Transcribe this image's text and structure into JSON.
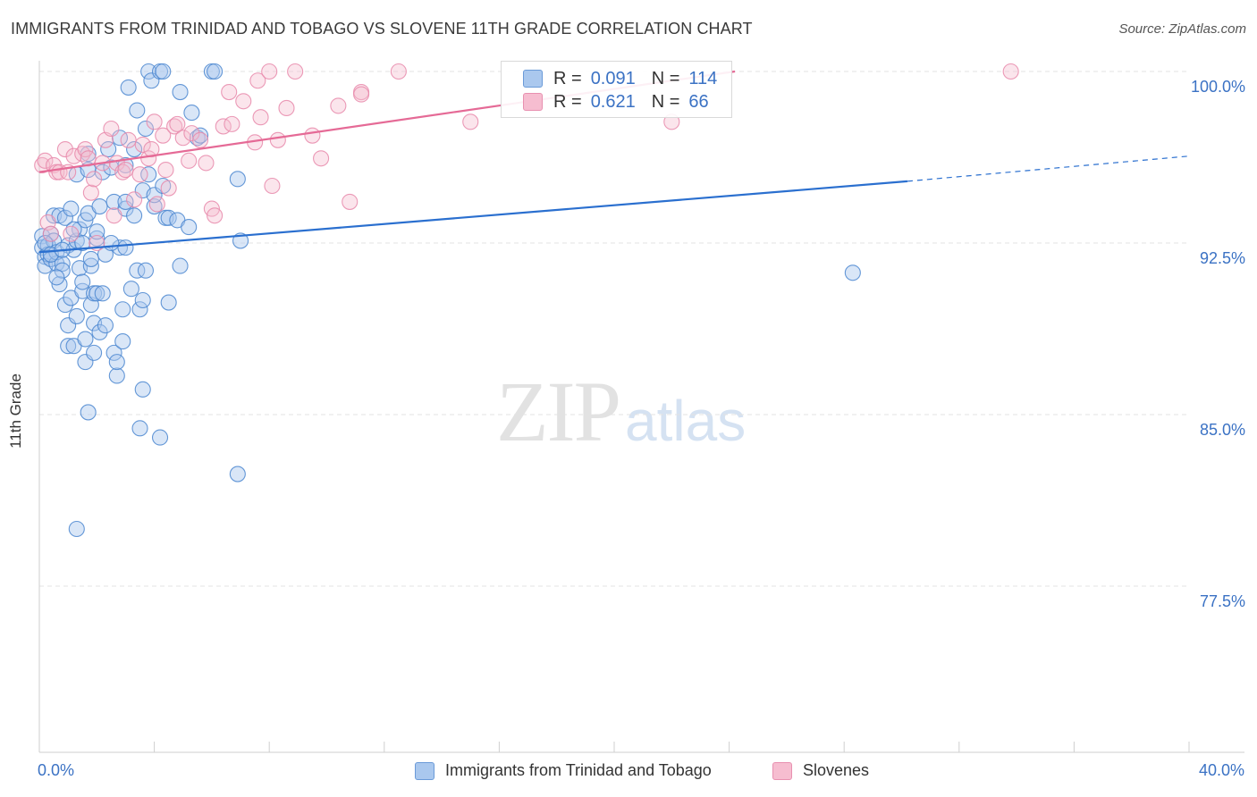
{
  "header": {
    "title": "IMMIGRANTS FROM TRINIDAD AND TOBAGO VS SLOVENE 11TH GRADE CORRELATION CHART",
    "source": "Source: ZipAtlas.com"
  },
  "watermark": {
    "zip": "ZIP",
    "atlas": "atlas"
  },
  "colors": {
    "blue_fill": "#aac8ee",
    "blue_stroke": "#4a86d0",
    "blue_line": "#2a6fcf",
    "pink_fill": "#f6bdd0",
    "pink_stroke": "#e888aa",
    "pink_line": "#e56a96",
    "axis_text": "#3b72c4",
    "grid": "#e3e3e3"
  },
  "legend_top": {
    "rows": [
      {
        "r_label": "R =",
        "r_value": "0.091",
        "n_label": "N =",
        "n_value": "114"
      },
      {
        "r_label": "R =",
        "r_value": "0.621",
        "n_label": "N =",
        "n_value": "66"
      }
    ]
  },
  "chart_data": {
    "type": "scatter",
    "title": "IMMIGRANTS FROM TRINIDAD AND TOBAGO VS SLOVENE 11TH GRADE CORRELATION CHART",
    "xlabel": "",
    "ylabel": "11th Grade",
    "xlim": [
      0,
      40
    ],
    "ylim": [
      70,
      101.5
    ],
    "x_tick_labels": [
      "0.0%",
      "40.0%"
    ],
    "y_ticks": [
      {
        "value": 100.0,
        "label": "100.0%"
      },
      {
        "value": 92.5,
        "label": "92.5%"
      },
      {
        "value": 85.0,
        "label": "85.0%"
      },
      {
        "value": 77.5,
        "label": "77.5%"
      }
    ],
    "legend_position": "bottom-center",
    "series": [
      {
        "name": "Immigrants from Trinidad and Tobago",
        "color": "#aac8ee",
        "r": 0.091,
        "n": 114,
        "trend": {
          "x0": 0,
          "y0": 92.1,
          "x1": 30.2,
          "y1": 95.2,
          "dash_to_x": 40,
          "dash_to_y": 96.3
        },
        "points": [
          [
            0.1,
            92.8
          ],
          [
            0.1,
            92.3
          ],
          [
            0.2,
            91.9
          ],
          [
            0.2,
            91.5
          ],
          [
            0.3,
            92.4
          ],
          [
            0.3,
            92.0
          ],
          [
            0.4,
            91.8
          ],
          [
            0.4,
            92.9
          ],
          [
            0.5,
            93.7
          ],
          [
            0.5,
            92.6
          ],
          [
            0.6,
            91.6
          ],
          [
            0.6,
            92.1
          ],
          [
            0.7,
            93.7
          ],
          [
            0.7,
            90.7
          ],
          [
            0.8,
            91.6
          ],
          [
            0.8,
            91.3
          ],
          [
            0.9,
            93.6
          ],
          [
            0.9,
            89.8
          ],
          [
            1.0,
            92.4
          ],
          [
            1.0,
            88.9
          ],
          [
            1.0,
            88.0
          ],
          [
            1.1,
            94.0
          ],
          [
            1.1,
            90.1
          ],
          [
            1.2,
            92.2
          ],
          [
            1.2,
            88.0
          ],
          [
            1.3,
            95.5
          ],
          [
            1.3,
            92.6
          ],
          [
            1.3,
            89.3
          ],
          [
            1.4,
            93.1
          ],
          [
            1.4,
            91.4
          ],
          [
            1.5,
            90.4
          ],
          [
            1.5,
            90.8
          ],
          [
            1.6,
            93.5
          ],
          [
            1.6,
            88.3
          ],
          [
            1.6,
            87.3
          ],
          [
            1.7,
            93.8
          ],
          [
            1.7,
            96.4
          ],
          [
            1.7,
            95.7
          ],
          [
            1.7,
            85.1
          ],
          [
            1.8,
            91.5
          ],
          [
            1.8,
            91.8
          ],
          [
            1.8,
            89.8
          ],
          [
            1.9,
            90.3
          ],
          [
            1.9,
            87.7
          ],
          [
            1.9,
            89.0
          ],
          [
            2.0,
            92.7
          ],
          [
            2.0,
            90.3
          ],
          [
            2.1,
            94.1
          ],
          [
            2.1,
            88.6
          ],
          [
            2.2,
            95.6
          ],
          [
            2.2,
            90.3
          ],
          [
            2.3,
            92.0
          ],
          [
            2.3,
            88.9
          ],
          [
            2.4,
            96.6
          ],
          [
            2.5,
            95.8
          ],
          [
            2.6,
            94.3
          ],
          [
            2.6,
            87.7
          ],
          [
            2.7,
            86.7
          ],
          [
            2.7,
            87.3
          ],
          [
            2.8,
            97.1
          ],
          [
            2.8,
            92.3
          ],
          [
            2.9,
            88.2
          ],
          [
            2.9,
            89.6
          ],
          [
            3.0,
            95.9
          ],
          [
            3.0,
            94.0
          ],
          [
            3.0,
            92.3
          ],
          [
            3.1,
            99.3
          ],
          [
            3.2,
            90.5
          ],
          [
            3.3,
            96.6
          ],
          [
            3.3,
            93.7
          ],
          [
            3.4,
            91.3
          ],
          [
            3.4,
            98.3
          ],
          [
            3.5,
            89.6
          ],
          [
            3.5,
            84.4
          ],
          [
            3.6,
            94.8
          ],
          [
            3.6,
            86.1
          ],
          [
            3.6,
            90.0
          ],
          [
            3.7,
            97.5
          ],
          [
            3.7,
            91.3
          ],
          [
            3.8,
            100.0
          ],
          [
            3.9,
            99.6
          ],
          [
            4.0,
            94.1
          ],
          [
            4.0,
            94.6
          ],
          [
            4.2,
            100.0
          ],
          [
            4.2,
            84.0
          ],
          [
            4.3,
            95.0
          ],
          [
            4.3,
            100.0
          ],
          [
            4.4,
            93.6
          ],
          [
            4.5,
            89.9
          ],
          [
            4.5,
            93.6
          ],
          [
            4.8,
            93.5
          ],
          [
            4.9,
            99.1
          ],
          [
            4.9,
            91.5
          ],
          [
            5.2,
            93.2
          ],
          [
            5.3,
            98.2
          ],
          [
            5.5,
            97.1
          ],
          [
            5.6,
            97.2
          ],
          [
            6.0,
            100.0
          ],
          [
            6.1,
            100.0
          ],
          [
            6.9,
            95.3
          ],
          [
            6.9,
            82.4
          ],
          [
            7.0,
            92.6
          ],
          [
            1.3,
            80.0
          ],
          [
            28.3,
            91.2
          ],
          [
            0.2,
            92.5
          ],
          [
            0.4,
            92.0
          ],
          [
            0.6,
            91.0
          ],
          [
            0.8,
            92.2
          ],
          [
            1.5,
            92.5
          ],
          [
            2.0,
            93.0
          ],
          [
            2.5,
            92.5
          ],
          [
            3.0,
            94.3
          ],
          [
            3.8,
            95.5
          ],
          [
            1.2,
            93.1
          ]
        ]
      },
      {
        "name": "Slovenes",
        "color": "#f6bdd0",
        "r": 0.621,
        "n": 66,
        "trend": {
          "x0": 0,
          "y0": 95.6,
          "x1": 24.2,
          "y1": 100.0
        },
        "points": [
          [
            0.1,
            95.9
          ],
          [
            0.2,
            96.1
          ],
          [
            0.3,
            93.4
          ],
          [
            0.4,
            92.9
          ],
          [
            0.5,
            95.9
          ],
          [
            0.6,
            95.6
          ],
          [
            0.7,
            95.6
          ],
          [
            0.9,
            96.6
          ],
          [
            1.0,
            95.6
          ],
          [
            1.1,
            92.9
          ],
          [
            1.2,
            96.3
          ],
          [
            1.5,
            96.4
          ],
          [
            1.6,
            96.6
          ],
          [
            1.7,
            96.2
          ],
          [
            1.8,
            94.7
          ],
          [
            1.9,
            95.3
          ],
          [
            2.0,
            92.5
          ],
          [
            2.2,
            96.0
          ],
          [
            2.3,
            97.0
          ],
          [
            2.5,
            97.5
          ],
          [
            2.6,
            93.7
          ],
          [
            2.7,
            96.0
          ],
          [
            2.9,
            95.6
          ],
          [
            3.0,
            95.7
          ],
          [
            3.1,
            97.0
          ],
          [
            3.3,
            94.4
          ],
          [
            3.5,
            95.5
          ],
          [
            3.6,
            96.8
          ],
          [
            3.8,
            96.2
          ],
          [
            3.9,
            96.6
          ],
          [
            4.0,
            97.8
          ],
          [
            4.1,
            94.2
          ],
          [
            4.3,
            97.2
          ],
          [
            4.4,
            95.7
          ],
          [
            4.5,
            94.9
          ],
          [
            4.7,
            97.6
          ],
          [
            4.8,
            97.7
          ],
          [
            5.0,
            97.1
          ],
          [
            5.2,
            96.1
          ],
          [
            5.3,
            97.3
          ],
          [
            5.6,
            97.0
          ],
          [
            5.8,
            96.0
          ],
          [
            6.0,
            94.0
          ],
          [
            6.1,
            93.7
          ],
          [
            6.4,
            97.6
          ],
          [
            6.6,
            99.1
          ],
          [
            6.7,
            97.7
          ],
          [
            7.1,
            98.7
          ],
          [
            7.5,
            96.9
          ],
          [
            7.6,
            99.6
          ],
          [
            7.7,
            98.0
          ],
          [
            8.0,
            100.0
          ],
          [
            8.1,
            95.0
          ],
          [
            8.3,
            97.0
          ],
          [
            8.6,
            98.4
          ],
          [
            8.9,
            100.0
          ],
          [
            9.5,
            97.2
          ],
          [
            9.8,
            96.2
          ],
          [
            10.4,
            98.5
          ],
          [
            10.8,
            94.3
          ],
          [
            11.2,
            99.1
          ],
          [
            11.2,
            99.0
          ],
          [
            12.5,
            100.0
          ],
          [
            15.0,
            97.8
          ],
          [
            22.0,
            97.8
          ],
          [
            33.8,
            100.0
          ]
        ]
      }
    ]
  }
}
